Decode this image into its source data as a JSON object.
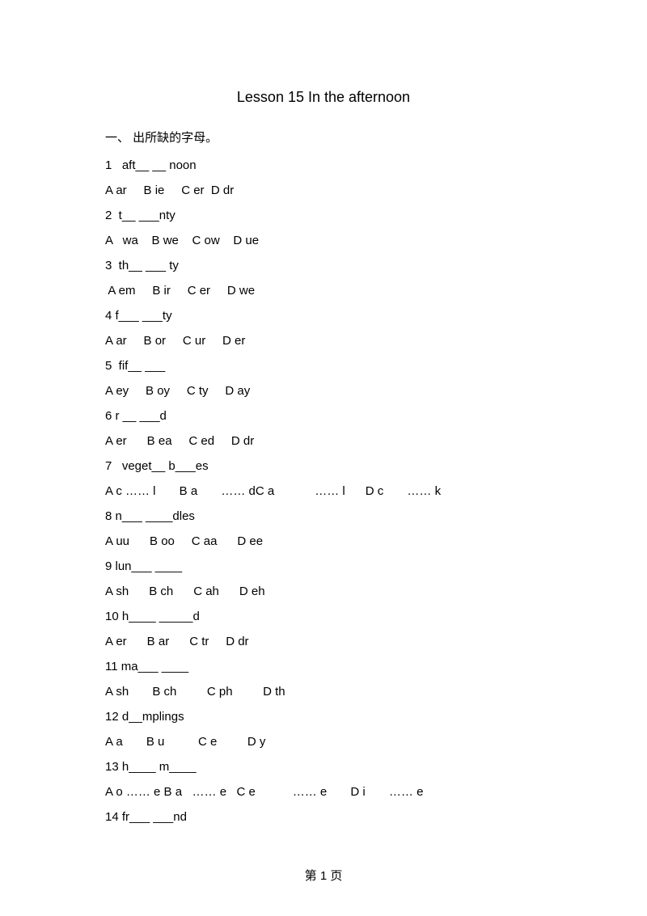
{
  "title": "Lesson 15 In  the  afternoon",
  "section_heading": "一、    出所缺的字母。",
  "questions": [
    {
      "q": "1   aft__ __ noon",
      "opts": "A ar     B ie     C er  D dr"
    },
    {
      "q": "2  t__ ___nty",
      "opts": "A   wa    B we    C ow    D ue"
    },
    {
      "q": "3  th__ ___ ty",
      "opts": " A em     B ir     C er     D we"
    },
    {
      "q": "4 f___ ___ty",
      "opts": "A ar     B or     C ur     D er"
    },
    {
      "q": "5  fif__ ___",
      "opts": "A ey     B oy     C ty     D ay"
    },
    {
      "q": "6 r __ ___d",
      "opts": "A er      B ea     C ed     D dr"
    },
    {
      "q": "7   veget__ b___es",
      "opts": "A c …… l       B a       …… dC a            …… l      D c       …… k"
    },
    {
      "q": "8 n___ ____dles",
      "opts": "A uu      B oo     C aa      D ee"
    },
    {
      "q": "9 lun___ ____",
      "opts": "A sh      B ch      C ah      D eh"
    },
    {
      "q": "10 h____ _____d",
      "opts": "A er      B ar      C tr     D dr"
    },
    {
      "q": "11 ma___ ____",
      "opts": "A sh       B ch         C ph         D th"
    },
    {
      "q": "12 d__mplings",
      "opts": "A a       B u          C e         D y"
    },
    {
      "q": "13 h____ m____",
      "opts": "A o …… e B a   …… e   C e           …… e       D i       …… e"
    },
    {
      "q": "14 fr___ ___nd",
      "opts": ""
    }
  ],
  "footer": "第 1     页"
}
